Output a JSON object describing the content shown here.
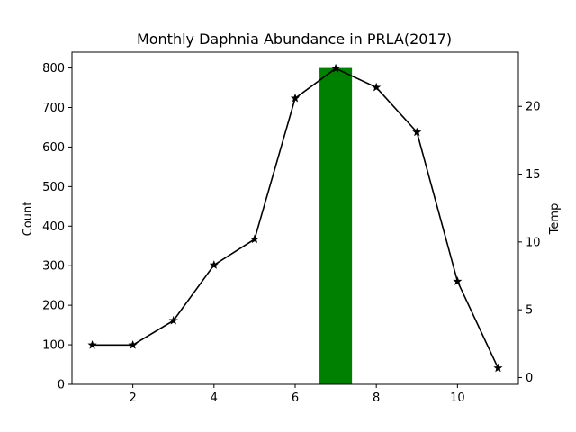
{
  "chart_data": {
    "type": "bar",
    "title": "Monthly Daphnia Abundance in PRLA(2017)",
    "xlabel": "",
    "ylabel": "Count",
    "y2label": "Temp",
    "xlim": [
      0.5,
      11.5
    ],
    "ylim": [
      0,
      840
    ],
    "y2lim": [
      -0.5,
      24
    ],
    "xticks": [
      2,
      4,
      6,
      8,
      10
    ],
    "yticks": [
      0,
      100,
      200,
      300,
      400,
      500,
      600,
      700,
      800
    ],
    "y2ticks": [
      0,
      5,
      10,
      15,
      20
    ],
    "grid": false,
    "bar_series": {
      "name": "",
      "color": "#008000",
      "bar_width": 0.8,
      "points": [
        {
          "x": 7,
          "y": 800
        }
      ]
    },
    "line_series": {
      "name": "",
      "axis": "right",
      "color": "#000000",
      "marker": "star",
      "points": [
        {
          "x": 1,
          "y": 2.4
        },
        {
          "x": 2,
          "y": 2.4
        },
        {
          "x": 3,
          "y": 4.2
        },
        {
          "x": 4,
          "y": 8.3
        },
        {
          "x": 5,
          "y": 10.2
        },
        {
          "x": 6,
          "y": 20.6
        },
        {
          "x": 7,
          "y": 22.8
        },
        {
          "x": 8,
          "y": 21.4
        },
        {
          "x": 9,
          "y": 18.1
        },
        {
          "x": 10,
          "y": 7.1
        },
        {
          "x": 11,
          "y": 0.7
        }
      ]
    }
  }
}
